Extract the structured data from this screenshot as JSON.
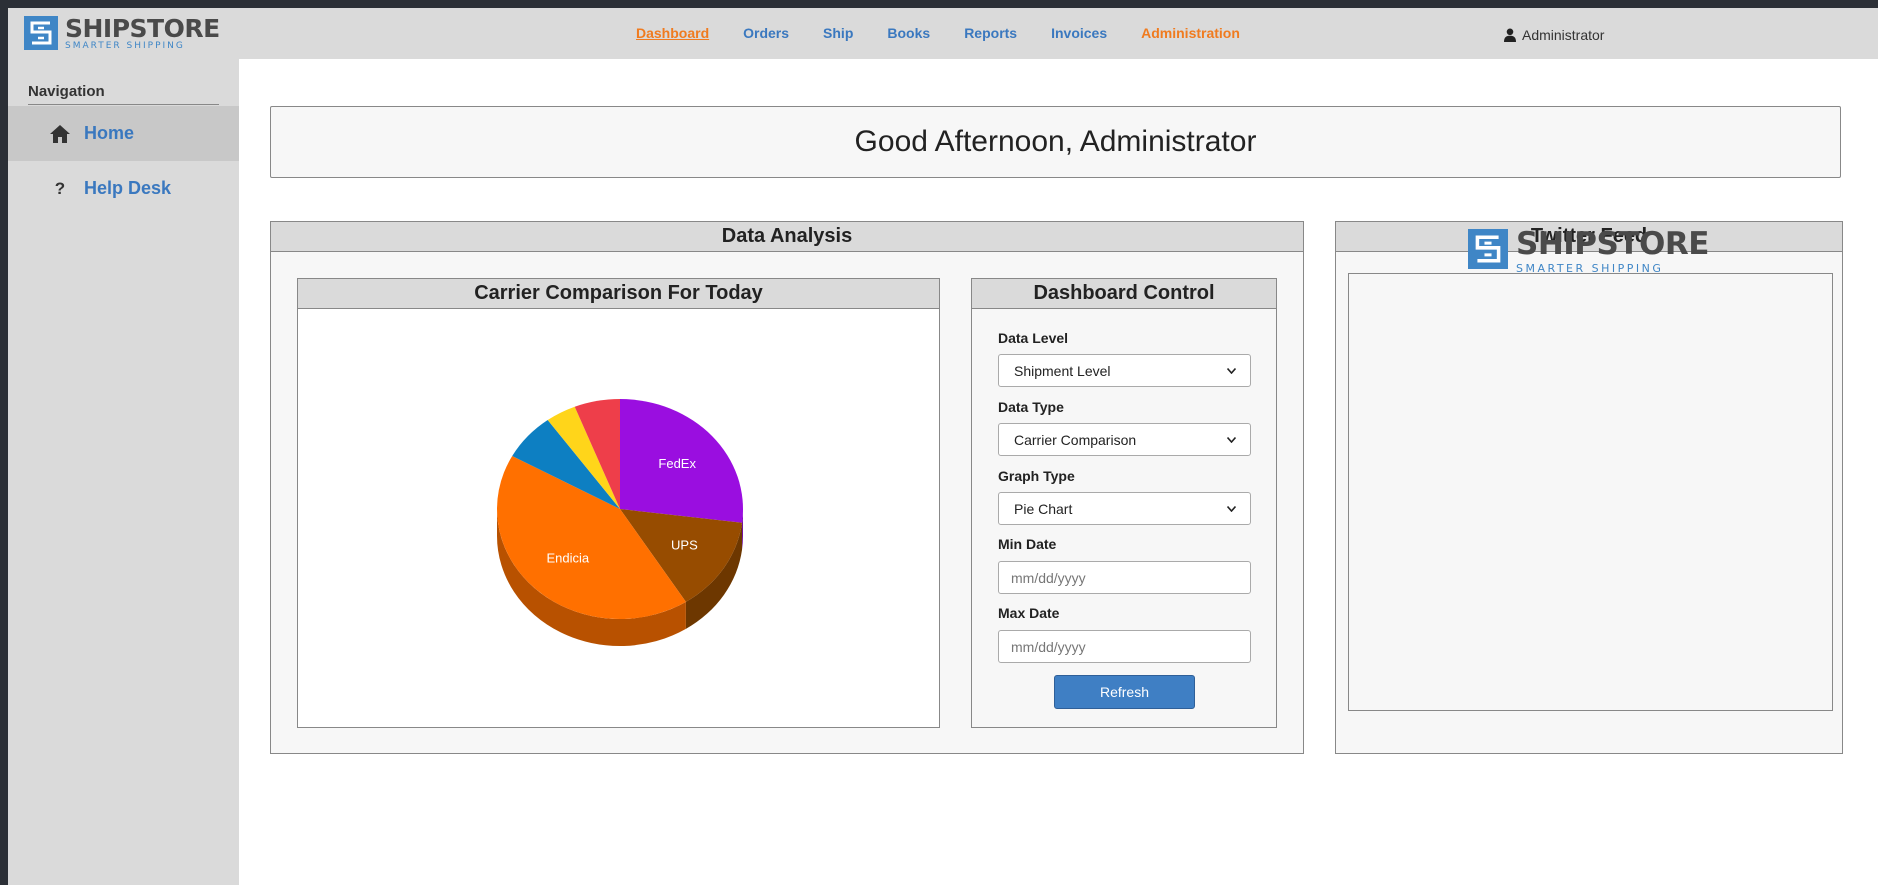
{
  "app": {
    "brand_name": "SHIPSTORE",
    "brand_tagline": "SMARTER SHIPPING"
  },
  "nav": {
    "items": [
      {
        "label": "Dashboard",
        "color": "#f07b1f",
        "active": true
      },
      {
        "label": "Orders",
        "color": "#3a78bf"
      },
      {
        "label": "Ship",
        "color": "#3a78bf"
      },
      {
        "label": "Books",
        "color": "#3a78bf"
      },
      {
        "label": "Reports",
        "color": "#3a78bf"
      },
      {
        "label": "Invoices",
        "color": "#3a78bf"
      },
      {
        "label": "Administration",
        "color": "#f07b1f"
      }
    ],
    "user_icon": "user-icon",
    "user_name": "Administrator"
  },
  "sidebar": {
    "title": "Navigation",
    "items": [
      {
        "label": "Home",
        "icon": "home-icon",
        "selected": true
      },
      {
        "label": "Help Desk",
        "icon": "question-icon",
        "selected": false
      }
    ]
  },
  "welcome": {
    "greeting": "Good Afternoon, Administrator"
  },
  "data_analysis": {
    "title": "Data Analysis",
    "chart_panel_title": "Carrier Comparison For Today"
  },
  "chart_data": {
    "type": "pie",
    "title": "Carrier Comparison For Today",
    "series": [
      {
        "name": "FedEx",
        "value": 27,
        "color": "#9a0ee0"
      },
      {
        "name": "UPS",
        "value": 14,
        "color": "#974c00"
      },
      {
        "name": "Endicia",
        "value": 42,
        "color": "#ff7000"
      },
      {
        "name": "",
        "value": 7,
        "color": "#0d7fc2"
      },
      {
        "name": "",
        "value": 4,
        "color": "#ffd51a"
      },
      {
        "name": "",
        "value": 6,
        "color": "#ee3e4a"
      }
    ],
    "style": "3d"
  },
  "control": {
    "title": "Dashboard Control",
    "data_level_label": "Data Level",
    "data_level_value": "Shipment Level",
    "data_type_label": "Data Type",
    "data_type_value": "Carrier Comparison",
    "graph_type_label": "Graph Type",
    "graph_type_value": "Pie Chart",
    "min_date_label": "Min Date",
    "min_date_placeholder": "mm/dd/yyyy",
    "max_date_label": "Max Date",
    "max_date_placeholder": "mm/dd/yyyy",
    "refresh_label": "Refresh"
  },
  "twitter": {
    "title": "Twitter Feed",
    "brand_name": "SHIPSTORE",
    "brand_tagline": "SMARTER SHIPPING"
  }
}
